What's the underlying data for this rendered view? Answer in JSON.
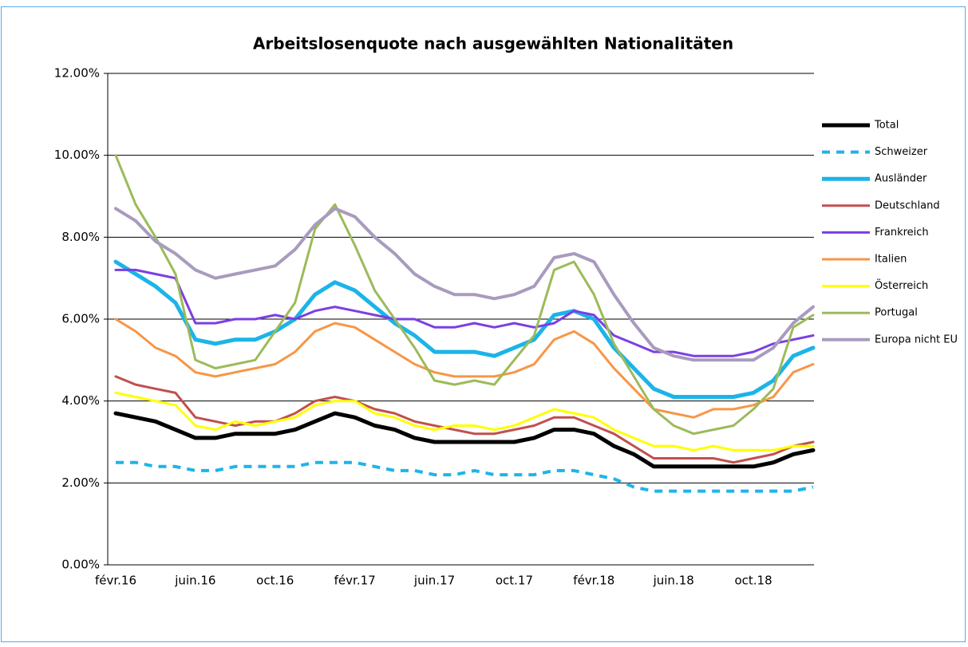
{
  "chart_data": {
    "type": "line",
    "title": "Arbeitslosenquote nach ausgewählten Nationalitäten",
    "categories": [
      "févr.16",
      null,
      null,
      null,
      "juin.16",
      null,
      null,
      null,
      "oct.16",
      null,
      null,
      null,
      "févr.17",
      null,
      null,
      null,
      "juin.17",
      null,
      null,
      null,
      "oct.17",
      null,
      null,
      null,
      "févr.18",
      null,
      null,
      null,
      "juin.18",
      null,
      null,
      null,
      "oct.18",
      null,
      null,
      null
    ],
    "ylim": [
      0,
      12
    ],
    "yticks": [
      {
        "value": 0,
        "label": "0.00%"
      },
      {
        "value": 2,
        "label": "2.00%"
      },
      {
        "value": 4,
        "label": "4.00%"
      },
      {
        "value": 6,
        "label": "6.00%"
      },
      {
        "value": 8,
        "label": "8.00%"
      },
      {
        "value": 10,
        "label": "10.00%"
      },
      {
        "value": 12,
        "label": "12.00%"
      }
    ],
    "grid": true,
    "legend": "right",
    "series": [
      {
        "name": "Total",
        "color": "#000000",
        "values": [
          3.7,
          3.6,
          3.5,
          3.3,
          3.1,
          3.1,
          3.2,
          3.2,
          3.2,
          3.3,
          3.5,
          3.7,
          3.6,
          3.4,
          3.3,
          3.1,
          3.0,
          3.0,
          3.0,
          3.0,
          3.0,
          3.1,
          3.3,
          3.3,
          3.2,
          2.9,
          2.7,
          2.4,
          2.4,
          2.4,
          2.4,
          2.4,
          2.4,
          2.5,
          2.7,
          2.8
        ]
      },
      {
        "name": "Schweizer",
        "color": "#1fb4e8",
        "dashed": true,
        "values": [
          2.5,
          2.5,
          2.4,
          2.4,
          2.3,
          2.3,
          2.4,
          2.4,
          2.4,
          2.4,
          2.5,
          2.5,
          2.5,
          2.4,
          2.3,
          2.3,
          2.2,
          2.2,
          2.3,
          2.2,
          2.2,
          2.2,
          2.3,
          2.3,
          2.2,
          2.1,
          1.9,
          1.8,
          1.8,
          1.8,
          1.8,
          1.8,
          1.8,
          1.8,
          1.8,
          1.9
        ]
      },
      {
        "name": "Ausländer",
        "color": "#1cb4e8",
        "values": [
          7.4,
          7.1,
          6.8,
          6.4,
          5.5,
          5.4,
          5.5,
          5.5,
          5.7,
          6.0,
          6.6,
          6.9,
          6.7,
          6.3,
          5.9,
          5.6,
          5.2,
          5.2,
          5.2,
          5.1,
          5.3,
          5.5,
          6.1,
          6.2,
          6.0,
          5.3,
          4.8,
          4.3,
          4.1,
          4.1,
          4.1,
          4.1,
          4.2,
          4.5,
          5.1,
          5.3
        ]
      },
      {
        "name": "Deutschland",
        "color": "#c0504d",
        "values": [
          4.6,
          4.4,
          4.3,
          4.2,
          3.6,
          3.5,
          3.4,
          3.5,
          3.5,
          3.7,
          4.0,
          4.1,
          4.0,
          3.8,
          3.7,
          3.5,
          3.4,
          3.3,
          3.2,
          3.2,
          3.3,
          3.4,
          3.6,
          3.6,
          3.4,
          3.2,
          2.9,
          2.6,
          2.6,
          2.6,
          2.6,
          2.5,
          2.6,
          2.7,
          2.9,
          3.0
        ]
      },
      {
        "name": "Frankreich",
        "color": "#7b3fe4",
        "values": [
          7.2,
          7.2,
          7.1,
          7.0,
          5.9,
          5.9,
          6.0,
          6.0,
          6.1,
          6.0,
          6.2,
          6.3,
          6.2,
          6.1,
          6.0,
          6.0,
          5.8,
          5.8,
          5.9,
          5.8,
          5.9,
          5.8,
          5.9,
          6.2,
          6.1,
          5.6,
          5.4,
          5.2,
          5.2,
          5.1,
          5.1,
          5.1,
          5.2,
          5.4,
          5.5,
          5.6
        ]
      },
      {
        "name": "Italien",
        "color": "#f79646",
        "values": [
          6.0,
          5.7,
          5.3,
          5.1,
          4.7,
          4.6,
          4.7,
          4.8,
          4.9,
          5.2,
          5.7,
          5.9,
          5.8,
          5.5,
          5.2,
          4.9,
          4.7,
          4.6,
          4.6,
          4.6,
          4.7,
          4.9,
          5.5,
          5.7,
          5.4,
          4.8,
          4.3,
          3.8,
          3.7,
          3.6,
          3.8,
          3.8,
          3.9,
          4.1,
          4.7,
          4.9
        ]
      },
      {
        "name": "Österreich",
        "color": "#ffff00",
        "values": [
          4.2,
          4.1,
          4.0,
          3.9,
          3.4,
          3.3,
          3.5,
          3.4,
          3.5,
          3.6,
          3.9,
          4.0,
          4.0,
          3.7,
          3.6,
          3.4,
          3.3,
          3.4,
          3.4,
          3.3,
          3.4,
          3.6,
          3.8,
          3.7,
          3.6,
          3.3,
          3.1,
          2.9,
          2.9,
          2.8,
          2.9,
          2.8,
          2.8,
          2.8,
          2.9,
          2.9
        ]
      },
      {
        "name": "Portugal",
        "color": "#9bbb59",
        "values": [
          10.0,
          8.8,
          8.0,
          7.1,
          5.0,
          4.8,
          4.9,
          5.0,
          5.7,
          6.4,
          8.2,
          8.8,
          7.8,
          6.7,
          6.0,
          5.3,
          4.5,
          4.4,
          4.5,
          4.4,
          5.0,
          5.6,
          7.2,
          7.4,
          6.6,
          5.4,
          4.6,
          3.8,
          3.4,
          3.2,
          3.3,
          3.4,
          3.8,
          4.3,
          5.8,
          6.1
        ]
      },
      {
        "name": "Europa nicht EU",
        "color": "#a99bbd",
        "values": [
          8.7,
          8.4,
          7.9,
          7.6,
          7.2,
          7.0,
          7.1,
          7.2,
          7.3,
          7.7,
          8.3,
          8.7,
          8.5,
          8.0,
          7.6,
          7.1,
          6.8,
          6.6,
          6.6,
          6.5,
          6.6,
          6.8,
          7.5,
          7.6,
          7.4,
          6.6,
          5.9,
          5.3,
          5.1,
          5.0,
          5.0,
          5.0,
          5.0,
          5.3,
          5.9,
          6.3
        ]
      }
    ]
  }
}
